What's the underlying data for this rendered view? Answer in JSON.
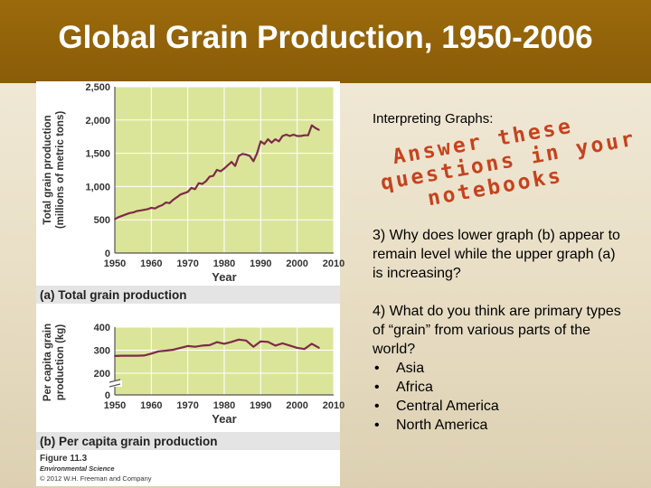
{
  "slide": {
    "title": "Global Grain Production, 1950-2006",
    "heading": "Interpreting Graphs:",
    "overlay_lines": [
      "Answer these",
      "questions in your",
      "notebooks"
    ],
    "question3": "3) Why does lower graph (b) appear to remain level while the upper graph (a) is increasing?",
    "question4": "4) What do you think are primary types of “grain” from various parts of the world?",
    "bullets": [
      "Asia",
      "Africa",
      "Central America",
      "North America"
    ]
  },
  "figure": {
    "figure_label": "Figure 11.3",
    "book": "Environmental Science",
    "copyright": "© 2012 W.H. Freeman and Company",
    "colors": {
      "plot_bg": "#dbe59a",
      "line": "#7e2a4a",
      "caption_bg": "#e4e4e4"
    }
  },
  "chart_data": [
    {
      "type": "line",
      "caption": "(a) Total grain production",
      "xlabel": "Year",
      "ylabel": "Total grain production (millions of metric tons)",
      "xlim": [
        1950,
        2010
      ],
      "ylim": [
        0,
        2500
      ],
      "xticks": [
        1950,
        1960,
        1970,
        1980,
        1990,
        2000,
        2010
      ],
      "yticks": [
        0,
        500,
        1000,
        1500,
        2000,
        2500
      ],
      "ytick_labels": [
        "0",
        "500",
        "1,000",
        "1,500",
        "2,000",
        "2,500"
      ],
      "grid": true,
      "series": [
        {
          "x": [
            1950,
            1951,
            1952,
            1953,
            1954,
            1955,
            1956,
            1957,
            1958,
            1959,
            1960,
            1961,
            1962,
            1963,
            1964,
            1965,
            1966,
            1967,
            1968,
            1969,
            1970,
            1971,
            1972,
            1973,
            1974,
            1975,
            1976,
            1977,
            1978,
            1979,
            1980,
            1981,
            1982,
            1983,
            1984,
            1985,
            1986,
            1987,
            1988,
            1989,
            1990,
            1991,
            1992,
            1993,
            1994,
            1995,
            1996,
            1997,
            1998,
            1999,
            2000,
            2001,
            2002,
            2003,
            2004,
            2005,
            2006
          ],
          "y": [
            510,
            540,
            560,
            580,
            600,
            610,
            630,
            640,
            650,
            660,
            680,
            670,
            700,
            720,
            760,
            750,
            800,
            840,
            880,
            900,
            920,
            980,
            960,
            1050,
            1040,
            1080,
            1150,
            1160,
            1250,
            1230,
            1270,
            1320,
            1370,
            1310,
            1460,
            1490,
            1480,
            1460,
            1380,
            1500,
            1680,
            1640,
            1710,
            1660,
            1710,
            1680,
            1760,
            1780,
            1760,
            1780,
            1760,
            1760,
            1770,
            1770,
            1920,
            1880,
            1850
          ]
        }
      ]
    },
    {
      "type": "line",
      "caption": "(b) Per capita grain production",
      "xlabel": "Year",
      "ylabel": "Per capita grain production (kg)",
      "xlim": [
        1950,
        2010
      ],
      "ylim": [
        0,
        400
      ],
      "axis_break": true,
      "xticks": [
        1950,
        1960,
        1970,
        1980,
        1990,
        2000,
        2010
      ],
      "yticks": [
        0,
        200,
        300,
        400
      ],
      "grid": true,
      "series": [
        {
          "x": [
            1950,
            1952,
            1954,
            1956,
            1958,
            1960,
            1962,
            1964,
            1966,
            1968,
            1970,
            1972,
            1974,
            1976,
            1978,
            1980,
            1982,
            1984,
            1986,
            1988,
            1990,
            1992,
            1994,
            1996,
            1998,
            2000,
            2002,
            2004,
            2006
          ],
          "y": [
            275,
            276,
            276,
            276,
            277,
            285,
            295,
            298,
            302,
            310,
            318,
            315,
            320,
            322,
            335,
            328,
            336,
            346,
            342,
            315,
            338,
            336,
            320,
            330,
            320,
            310,
            305,
            328,
            310
          ]
        }
      ]
    }
  ]
}
